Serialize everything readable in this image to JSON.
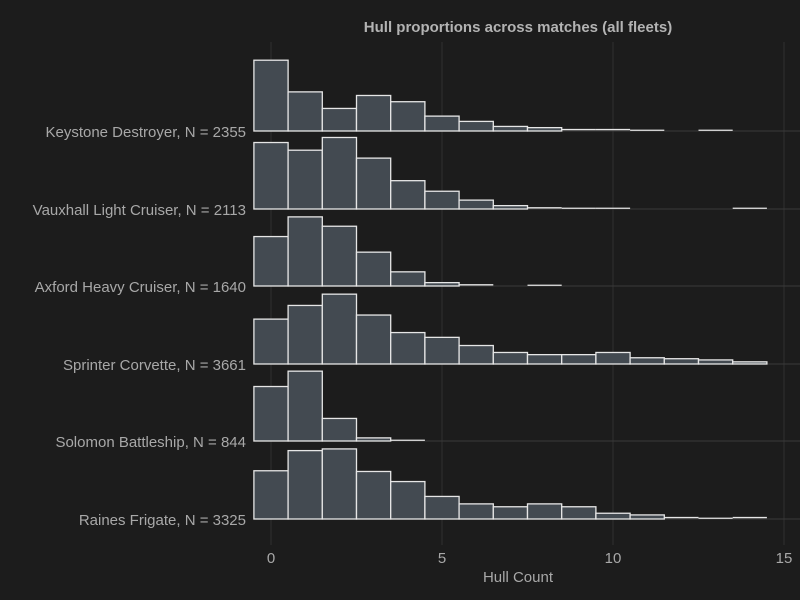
{
  "colors": {
    "background": "#1c1c1c",
    "bar_fill": "#434a51",
    "bar_stroke": "#e6e6e6",
    "text": "#a8a8a8",
    "grid": "#2f2f2f"
  },
  "chart_data": {
    "type": "bar",
    "subtype": "ridgeline-histogram",
    "title": "Hull proportions across matches (all fleets)",
    "xlabel": "Hull Count",
    "ylabel": "",
    "xlim": [
      -1,
      15
    ],
    "xticks": [
      "0",
      "5",
      "10",
      "15"
    ],
    "xtick_values": [
      0,
      5,
      10,
      15
    ],
    "grid": true,
    "bins": [
      0,
      1,
      2,
      3,
      4,
      5,
      6,
      7,
      8,
      9,
      10,
      11,
      12,
      13,
      14
    ],
    "series": [
      {
        "name": "Keystone Destroyer, N = 2355",
        "values": [
          0.295,
          0.163,
          0.094,
          0.148,
          0.122,
          0.062,
          0.04,
          0.019,
          0.014,
          0.006,
          0.006,
          0.003,
          0.0,
          0.003,
          0.0
        ]
      },
      {
        "name": "Vauxhall Light Cruiser, N = 2113",
        "values": [
          0.277,
          0.245,
          0.298,
          0.212,
          0.118,
          0.074,
          0.037,
          0.014,
          0.005,
          0.003,
          0.003,
          0.0,
          0.0,
          0.0,
          0.003
        ]
      },
      {
        "name": "Axford Heavy Cruiser, N = 1640",
        "values": [
          0.206,
          0.288,
          0.249,
          0.141,
          0.059,
          0.014,
          0.005,
          0.0,
          0.003,
          0.0,
          0.0,
          0.0,
          0.0,
          0.0,
          0.0
        ]
      },
      {
        "name": "Sprinter Corvette, N = 3661",
        "values": [
          0.187,
          0.244,
          0.291,
          0.204,
          0.131,
          0.111,
          0.077,
          0.048,
          0.039,
          0.039,
          0.048,
          0.026,
          0.022,
          0.017,
          0.009
        ]
      },
      {
        "name": "Solomon Battleship, N = 844",
        "values": [
          0.227,
          0.291,
          0.094,
          0.013,
          0.003,
          0.0,
          0.0,
          0.0,
          0.0,
          0.0,
          0.0,
          0.0,
          0.0,
          0.0,
          0.0
        ]
      },
      {
        "name": "Raines Frigate, N = 3325",
        "values": [
          0.201,
          0.285,
          0.292,
          0.198,
          0.156,
          0.094,
          0.063,
          0.051,
          0.063,
          0.051,
          0.024,
          0.017,
          0.006,
          0.003,
          0.006
        ]
      }
    ]
  }
}
